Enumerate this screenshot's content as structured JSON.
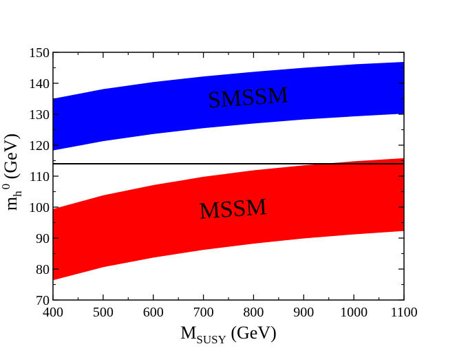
{
  "chart_data": {
    "type": "area",
    "title": "",
    "xlabel": {
      "main": "M",
      "sub": "SUSY",
      "rest": " (GeV)"
    },
    "ylabel": {
      "main": "m",
      "sub": "h",
      "sup": "0",
      "rest": " (GeV)"
    },
    "xlim": [
      400,
      1100
    ],
    "ylim": [
      70,
      150
    ],
    "xticks": [
      400,
      500,
      600,
      700,
      800,
      900,
      1000,
      1100
    ],
    "yticks": [
      70,
      80,
      90,
      100,
      110,
      120,
      130,
      140,
      150
    ],
    "grid": false,
    "series": [
      {
        "name": "SMSSM",
        "color": "#0000ff",
        "x": [
          400,
          500,
          600,
          700,
          800,
          900,
          1000,
          1100
        ],
        "lower": [
          118.3,
          121.3,
          123.6,
          125.5,
          127.0,
          128.3,
          129.3,
          130.2
        ],
        "upper": [
          135.0,
          138.1,
          140.4,
          142.2,
          143.7,
          145.0,
          146.1,
          146.9
        ]
      },
      {
        "name": "MSSM",
        "color": "#ff0000",
        "x": [
          400,
          500,
          600,
          700,
          800,
          900,
          1000,
          1100
        ],
        "lower": [
          76.4,
          80.6,
          83.7,
          86.2,
          88.2,
          89.9,
          91.2,
          92.3
        ],
        "upper": [
          99.4,
          103.8,
          107.1,
          109.8,
          111.9,
          113.5,
          114.8,
          115.8
        ]
      }
    ],
    "reference_line": {
      "y": 114,
      "color": "#000000"
    },
    "annotations": [
      {
        "text": "SMSSM",
        "x": 790,
        "y": 133
      },
      {
        "text": "MSSM",
        "x": 760,
        "y": 97
      }
    ]
  }
}
